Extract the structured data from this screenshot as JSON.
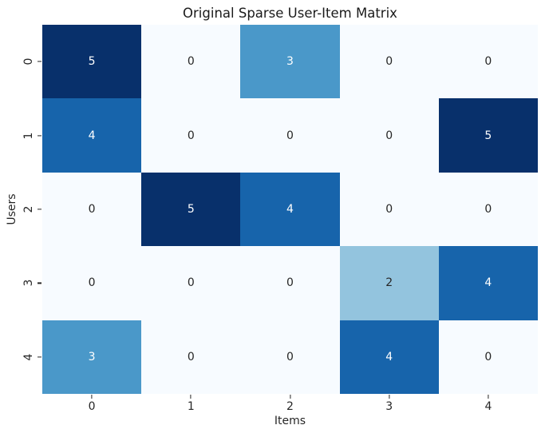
{
  "chart_data": {
    "type": "heatmap",
    "title": "Original Sparse User-Item Matrix",
    "xlabel": "Items",
    "ylabel": "Users",
    "x_ticklabels": [
      "0",
      "1",
      "2",
      "3",
      "4"
    ],
    "y_ticklabels": [
      "0",
      "1",
      "2",
      "3",
      "4"
    ],
    "matrix": [
      [
        5,
        0,
        3,
        0,
        0
      ],
      [
        4,
        0,
        0,
        0,
        5
      ],
      [
        0,
        5,
        4,
        0,
        0
      ],
      [
        0,
        0,
        0,
        2,
        4
      ],
      [
        3,
        0,
        0,
        4,
        0
      ]
    ],
    "colormap": "Blues",
    "vmin": 0,
    "vmax": 5,
    "value_colors": {
      "0": "#f7fbff",
      "2": "#93c4de",
      "3": "#4a98c9",
      "4": "#1764ab",
      "5": "#08306b"
    },
    "annot_color_light": "#ffffff",
    "annot_color_dark": "#262626",
    "grid": false,
    "legend": "none",
    "colorbar": false
  }
}
